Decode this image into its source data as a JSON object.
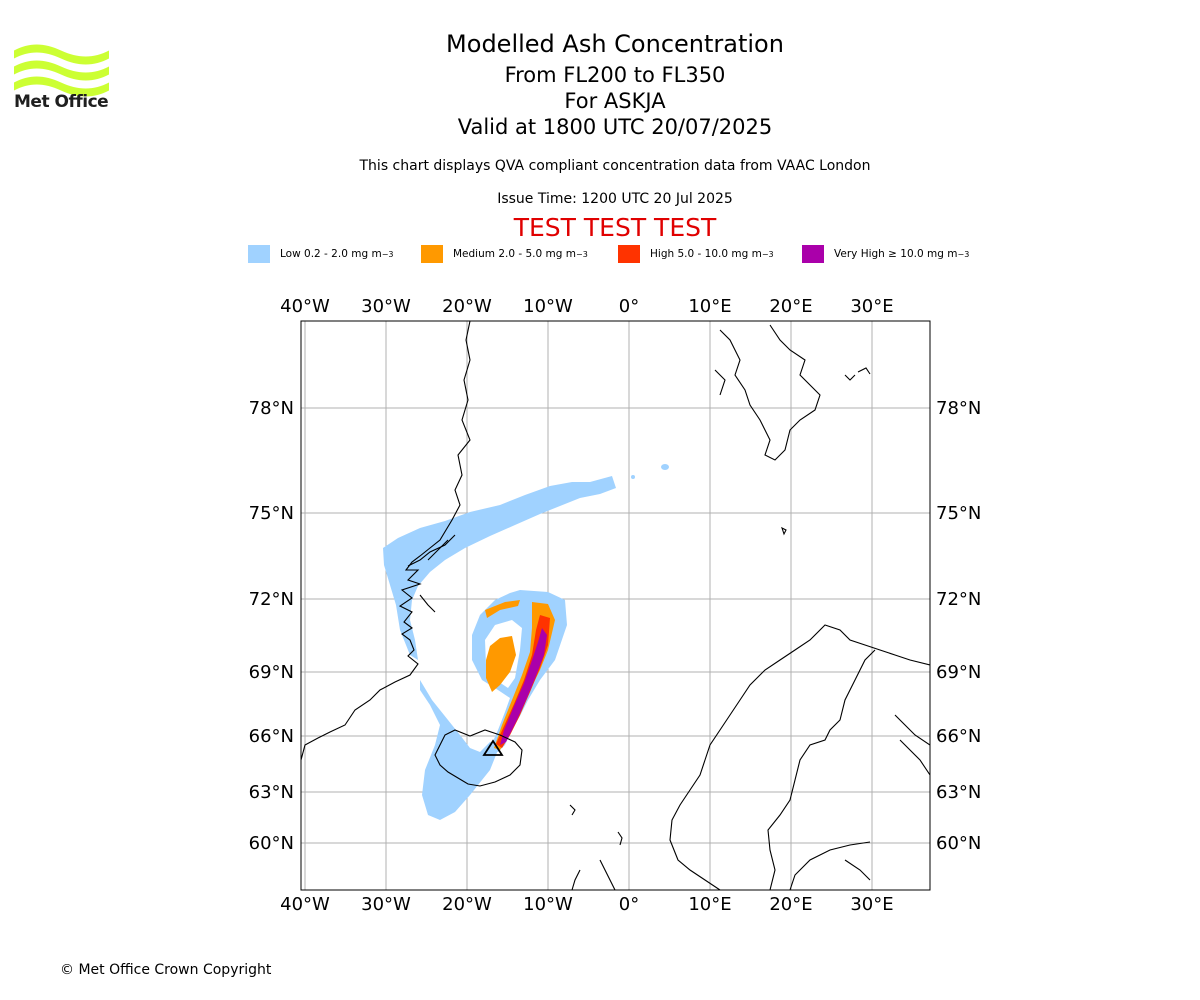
{
  "logo": {
    "text": "Met Office",
    "icon": "met-office-wave-logo",
    "color": "#ccff33"
  },
  "title": "Modelled Ash Concentration",
  "subtitle_lines": [
    "From FL200 to FL350",
    "For ASKJA",
    "Valid at 1800 UTC 20/07/2025"
  ],
  "description": "This chart displays QVA compliant concentration data from VAAC London",
  "issue_time": "Issue Time: 1200 UTC 20 Jul 2025",
  "test_banner": "TEST TEST TEST",
  "legend": [
    {
      "label": "Low 0.2 - 2.0 mg m",
      "color": "#a0d2ff"
    },
    {
      "label": "Medium 2.0 - 5.0 mg m",
      "color": "#ff9900"
    },
    {
      "label": "High 5.0 - 10.0 mg m",
      "color": "#ff3300"
    },
    {
      "label": "Very High  ≥  10.0 mg m",
      "color": "#aa00aa"
    }
  ],
  "legend_unit_exponent": "−3",
  "map": {
    "lon_labels": [
      "40°W",
      "30°W",
      "20°W",
      "10°W",
      "0°",
      "10°E",
      "20°E",
      "30°E"
    ],
    "lat_labels": [
      "78°N",
      "75°N",
      "72°N",
      "69°N",
      "66°N",
      "63°N",
      "60°N"
    ],
    "volcano_marker": "triangle",
    "gridline_color": "#b0b0b0"
  },
  "copyright": "© Met Office Crown Copyright"
}
